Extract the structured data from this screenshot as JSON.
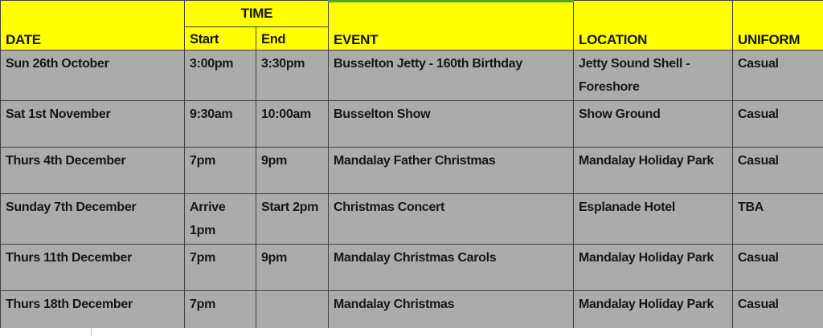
{
  "table": {
    "headers": {
      "date": "DATE",
      "time": "TIME",
      "start": "Start",
      "end": "End",
      "event": "EVENT",
      "location": "LOCATION",
      "uniform": "UNIFORM"
    },
    "rows": [
      {
        "date": "Sun 26th October",
        "start": "3:00pm",
        "end": "3:30pm",
        "event": "Busselton Jetty - 160th Birthday",
        "location": "Jetty Sound Shell - Foreshore",
        "uniform": "Casual"
      },
      {
        "date": "Sat 1st November",
        "start": "9:30am",
        "end": "10:00am",
        "event": "Busselton Show",
        "location": "Show Ground",
        "uniform": "Casual"
      },
      {
        "date": "Thurs 4th December",
        "start": "7pm",
        "end": "9pm",
        "event": "Mandalay Father Christmas",
        "location": "Mandalay Holiday Park",
        "uniform": "Casual"
      },
      {
        "date": "Sunday 7th December",
        "start": "Arrive 1pm",
        "end": "Start 2pm",
        "event": "Christmas Concert",
        "location": "Esplanade Hotel",
        "uniform": "TBA"
      },
      {
        "date": "Thurs 11th December",
        "start": "7pm",
        "end": "9pm",
        "event": "Mandalay Christmas Carols",
        "location": "Mandalay Holiday Park",
        "uniform": "Casual"
      },
      {
        "date": "Thurs 18th December",
        "start": "7pm",
        "end": "",
        "event": "Mandalay Christmas",
        "location": "Mandalay Holiday Park",
        "uniform": "Casual"
      }
    ],
    "colors": {
      "header_bg": "#ffff00",
      "row_bg": "#ababab",
      "border": "#3f3f3f",
      "event_accent": "#4ea72e"
    }
  }
}
